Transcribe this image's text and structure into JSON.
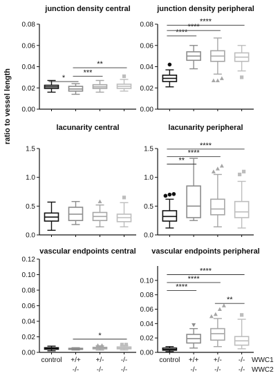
{
  "figure": {
    "y_axis_label": "ratio to vessel length",
    "row_labels": [
      "WWC1",
      "WWC2"
    ],
    "groups": [
      {
        "top": "control",
        "bottom": ""
      },
      {
        "top": "+/+",
        "bottom": "-/-"
      },
      {
        "top": "+/-",
        "bottom": "-/-"
      },
      {
        "top": "-/-",
        "bottom": "-/-"
      }
    ]
  },
  "chart_data": [
    {
      "type": "box",
      "title": "junction density central",
      "ylim": [
        0,
        0.08
      ],
      "yticks": [
        "0.00",
        "0.02",
        "0.04",
        "0.06",
        "0.08"
      ],
      "tick_values": [
        0,
        0.02,
        0.04,
        0.06,
        0.08
      ],
      "boxes": [
        {
          "min": 0.016,
          "q1": 0.0195,
          "median": 0.021,
          "q3": 0.0225,
          "max": 0.027,
          "outliers": []
        },
        {
          "min": 0.014,
          "q1": 0.017,
          "median": 0.019,
          "q3": 0.0215,
          "max": 0.024,
          "outliers": []
        },
        {
          "min": 0.016,
          "q1": 0.0195,
          "median": 0.021,
          "q3": 0.023,
          "max": 0.027,
          "outliers": []
        },
        {
          "min": 0.017,
          "q1": 0.0195,
          "median": 0.0215,
          "q3": 0.0235,
          "max": 0.028,
          "outliers": [
            0.031
          ]
        }
      ],
      "significance": [
        {
          "from": 0,
          "to": 1,
          "y": 0.026,
          "label": "*"
        },
        {
          "from": 1,
          "to": 2,
          "y": 0.031,
          "label": "***"
        },
        {
          "from": 1,
          "to": 3,
          "y": 0.039,
          "label": "**"
        }
      ]
    },
    {
      "type": "box",
      "title": "junction density peripheral",
      "ylim": [
        0,
        0.08
      ],
      "yticks": [
        "0.00",
        "0.02",
        "0.04",
        "0.06",
        "0.08"
      ],
      "tick_values": [
        0,
        0.02,
        0.04,
        0.06,
        0.08
      ],
      "boxes": [
        {
          "min": 0.021,
          "q1": 0.026,
          "median": 0.029,
          "q3": 0.032,
          "max": 0.037,
          "outliers": [
            0.042
          ]
        },
        {
          "min": 0.038,
          "q1": 0.046,
          "median": 0.05,
          "q3": 0.054,
          "max": 0.06,
          "outliers": []
        },
        {
          "min": 0.033,
          "q1": 0.045,
          "median": 0.05,
          "q3": 0.055,
          "max": 0.067,
          "outliers": [
            0.027,
            0.027,
            0.029
          ]
        },
        {
          "min": 0.036,
          "q1": 0.045,
          "median": 0.049,
          "q3": 0.053,
          "max": 0.06,
          "outliers": [
            0.03
          ]
        }
      ],
      "significance": [
        {
          "from": 0,
          "to": 1,
          "y": 0.069,
          "label": "****"
        },
        {
          "from": 0,
          "to": 2,
          "y": 0.074,
          "label": "****"
        },
        {
          "from": 0,
          "to": 3,
          "y": 0.079,
          "label": "****"
        }
      ]
    },
    {
      "type": "box",
      "title": "lacunarity central",
      "ylim": [
        0,
        1.5
      ],
      "yticks": [
        "0.0",
        "0.5",
        "1.0",
        "1.5"
      ],
      "tick_values": [
        0,
        0.5,
        1.0,
        1.5
      ],
      "boxes": [
        {
          "min": 0.08,
          "q1": 0.24,
          "median": 0.31,
          "q3": 0.38,
          "max": 0.57,
          "outliers": []
        },
        {
          "min": 0.18,
          "q1": 0.25,
          "median": 0.36,
          "q3": 0.48,
          "max": 0.58,
          "outliers": []
        },
        {
          "min": 0.14,
          "q1": 0.25,
          "median": 0.32,
          "q3": 0.39,
          "max": 0.52,
          "outliers": [
            0.58
          ]
        },
        {
          "min": 0.14,
          "q1": 0.23,
          "median": 0.3,
          "q3": 0.36,
          "max": 0.56,
          "outliers": [
            0.65
          ]
        }
      ],
      "significance": []
    },
    {
      "type": "box",
      "title": "lacunarity peripheral",
      "ylim": [
        0,
        1.5
      ],
      "yticks": [
        "0.0",
        "0.5",
        "1.0",
        "1.5"
      ],
      "tick_values": [
        0,
        0.5,
        1.0,
        1.5
      ],
      "boxes": [
        {
          "min": 0.12,
          "q1": 0.24,
          "median": 0.32,
          "q3": 0.42,
          "max": 0.62,
          "outliers": [
            0.68,
            0.7,
            0.71
          ]
        },
        {
          "min": 0.25,
          "q1": 0.3,
          "median": 0.5,
          "q3": 0.85,
          "max": 1.33,
          "outliers": []
        },
        {
          "min": 0.14,
          "q1": 0.35,
          "median": 0.45,
          "q3": 0.62,
          "max": 1.05,
          "outliers": [
            1.1,
            1.15,
            1.2
          ]
        },
        {
          "min": 0.12,
          "q1": 0.3,
          "median": 0.4,
          "q3": 0.58,
          "max": 0.93,
          "outliers": [
            1.05,
            1.1
          ]
        }
      ],
      "significance": [
        {
          "from": 0,
          "to": 1,
          "y": 1.23,
          "label": "**"
        },
        {
          "from": 0,
          "to": 2,
          "y": 1.36,
          "label": "****"
        },
        {
          "from": 0,
          "to": 3,
          "y": 1.49,
          "label": "****"
        }
      ]
    },
    {
      "type": "box",
      "title": "vascular endpoints central",
      "ylim": [
        0,
        0.12
      ],
      "yticks": [
        "0.00",
        "0.02",
        "0.04",
        "0.06",
        "0.08",
        "0.10",
        "0.12"
      ],
      "tick_values": [
        0,
        0.02,
        0.04,
        0.06,
        0.08,
        0.1,
        0.12
      ],
      "boxes": [
        {
          "min": 0.002,
          "q1": 0.004,
          "median": 0.005,
          "q3": 0.006,
          "max": 0.008,
          "outliers": []
        },
        {
          "min": 0.003,
          "q1": 0.0038,
          "median": 0.0045,
          "q3": 0.0052,
          "max": 0.006,
          "outliers": []
        },
        {
          "min": 0.003,
          "q1": 0.0045,
          "median": 0.0055,
          "q3": 0.0065,
          "max": 0.0085,
          "outliers": [
            0.009,
            0.009
          ]
        },
        {
          "min": 0.003,
          "q1": 0.0045,
          "median": 0.0055,
          "q3": 0.007,
          "max": 0.009,
          "outliers": [
            0.01,
            0.01
          ]
        }
      ],
      "significance": [
        {
          "from": 1,
          "to": 3,
          "y": 0.017,
          "label": "*"
        }
      ]
    },
    {
      "type": "box",
      "title": "vascular endpoints peripheral",
      "ylim": [
        0,
        0.12
      ],
      "yticks": [
        "0.00",
        "0.02",
        "0.04",
        "0.06",
        "0.08",
        "0.10"
      ],
      "tick_values": [
        0,
        0.02,
        0.04,
        0.06,
        0.08,
        0.1
      ],
      "boxes": [
        {
          "min": 0.001,
          "q1": 0.003,
          "median": 0.004,
          "q3": 0.006,
          "max": 0.008,
          "outliers": []
        },
        {
          "min": 0.006,
          "q1": 0.013,
          "median": 0.019,
          "q3": 0.025,
          "max": 0.033,
          "outliers": [
            0.038
          ]
        },
        {
          "min": 0.008,
          "q1": 0.017,
          "median": 0.026,
          "q3": 0.033,
          "max": 0.047,
          "outliers": [
            0.05,
            0.053,
            0.06,
            0.065
          ]
        },
        {
          "min": 0.005,
          "q1": 0.01,
          "median": 0.016,
          "q3": 0.022,
          "max": 0.046,
          "outliers": [
            0.052
          ]
        }
      ],
      "significance": [
        {
          "from": 0,
          "to": 1,
          "y": 0.086,
          "label": "****"
        },
        {
          "from": 0,
          "to": 2,
          "y": 0.097,
          "label": "****"
        },
        {
          "from": 0,
          "to": 3,
          "y": 0.108,
          "label": "****"
        },
        {
          "from": 2,
          "to": 3,
          "y": 0.068,
          "label": "**"
        }
      ]
    }
  ]
}
